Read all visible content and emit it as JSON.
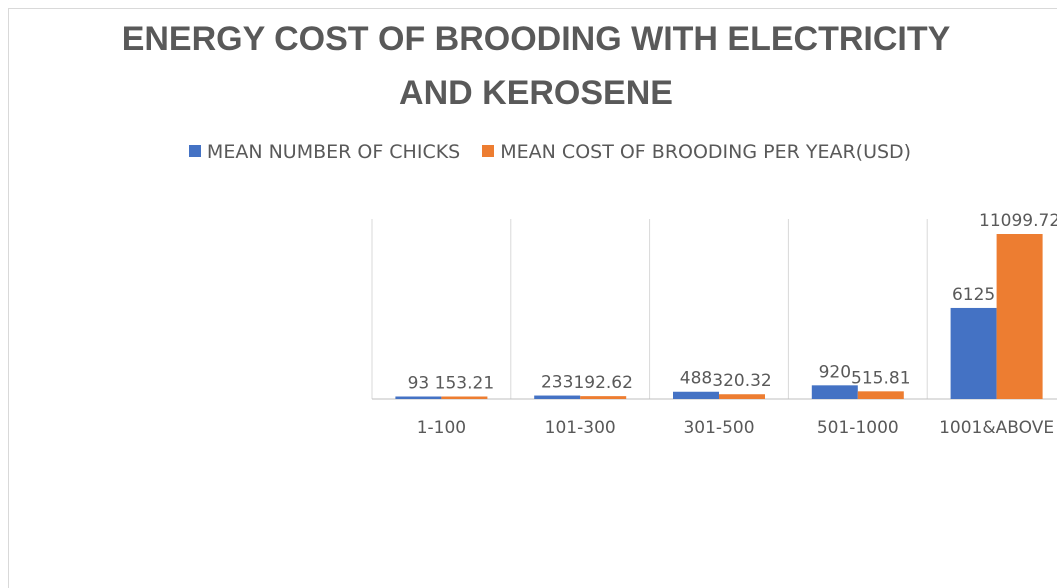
{
  "chart_data": {
    "type": "bar",
    "title": "ENERGY COST OF BROODING WITH ELECTRICITY AND KEROSENE",
    "title_lines": [
      "ENERGY COST OF BROODING WITH ELECTRICITY",
      "AND KEROSENE"
    ],
    "categories": [
      "1-100",
      "101-300",
      "301-500",
      "501-1000",
      "1001&ABOVE"
    ],
    "series": [
      {
        "name": "MEAN NUMBER OF CHICKS",
        "color": "#4472C4",
        "values": [
          93,
          233,
          488,
          920,
          6125
        ],
        "labels": [
          "93",
          "233",
          "488",
          "920",
          "6125"
        ]
      },
      {
        "name": "MEAN COST OF BROODING PER YEAR(USD)",
        "color": "#ED7D31",
        "values": [
          153.21,
          192.62,
          320.32,
          515.81,
          11099.72
        ],
        "labels": [
          "153.21",
          "192.62",
          "320.32",
          "515.81",
          "11099.72"
        ]
      }
    ],
    "ylim": [
      0,
      12000
    ],
    "legend_position": "top",
    "gridlines": "vertical category separators",
    "xlabel": "",
    "ylabel": ""
  },
  "colors": {
    "text": "#595959",
    "grid": "#d9d9d9",
    "axis": "#bfbfbf"
  }
}
